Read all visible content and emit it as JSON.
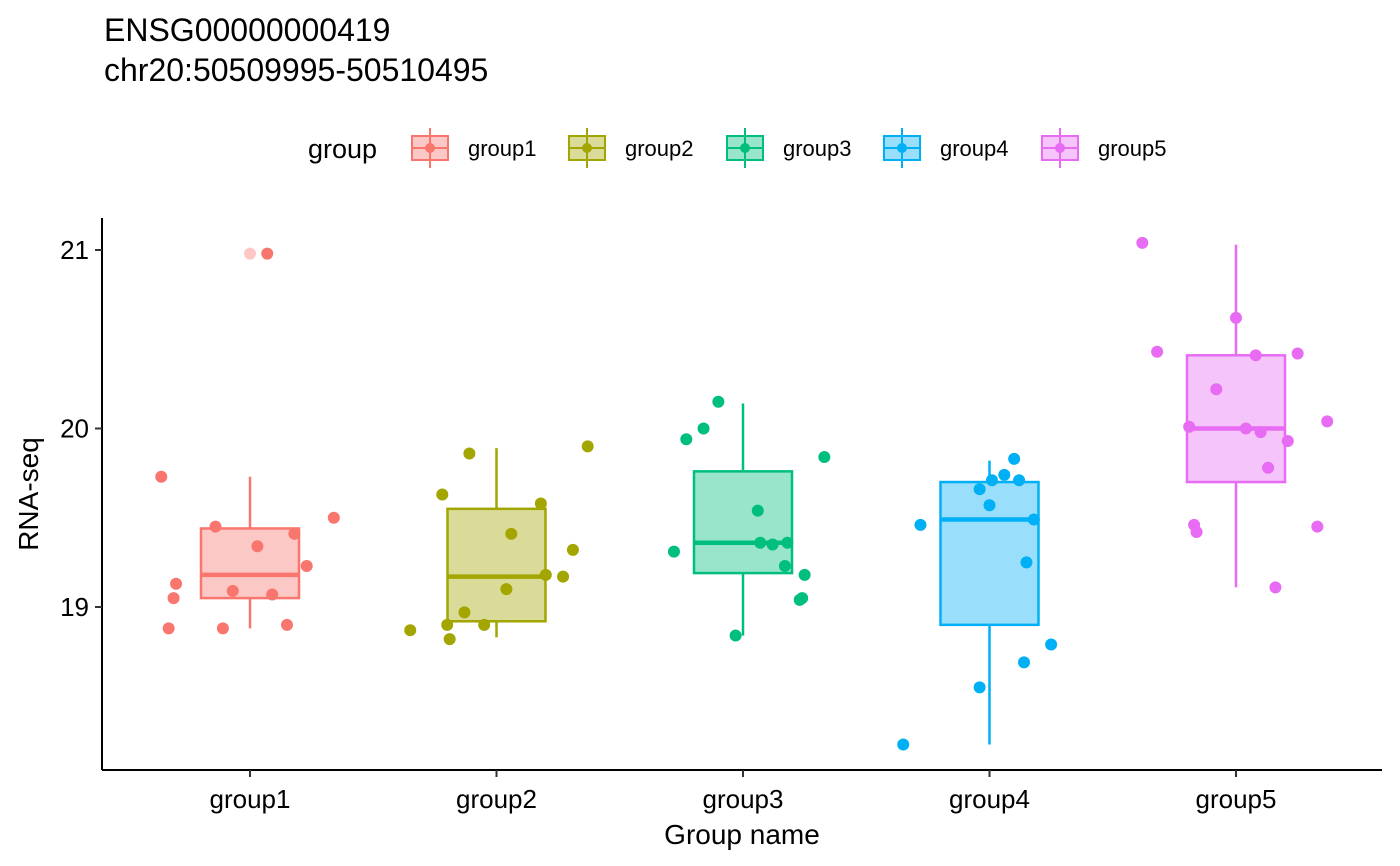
{
  "chart_data": {
    "type": "box",
    "title": "ENSG00000000419",
    "subtitle": "chr20:50509995-50510495",
    "xlabel": "Group name",
    "ylabel": "RNA-seq",
    "ylim": [
      18.1,
      21.2
    ],
    "yticks": [
      19,
      20,
      21
    ],
    "legend": {
      "title": "group",
      "position": "top"
    },
    "categories": [
      "group1",
      "group2",
      "group3",
      "group4",
      "group5"
    ],
    "series": [
      {
        "name": "group1",
        "color": "#F8766D",
        "box": {
          "min": 18.88,
          "q1": 19.05,
          "median": 19.18,
          "q3": 19.44,
          "max": 19.73
        },
        "outliers": [
          20.98
        ],
        "points": [
          {
            "dx": -0.36,
            "y": 19.73
          },
          {
            "dx": -0.3,
            "y": 19.13
          },
          {
            "dx": -0.31,
            "y": 19.05
          },
          {
            "dx": -0.33,
            "y": 18.88
          },
          {
            "dx": -0.14,
            "y": 19.45
          },
          {
            "dx": -0.07,
            "y": 19.09
          },
          {
            "dx": -0.11,
            "y": 18.88
          },
          {
            "dx": 0.03,
            "y": 19.34
          },
          {
            "dx": 0.09,
            "y": 19.07
          },
          {
            "dx": 0.15,
            "y": 18.9
          },
          {
            "dx": 0.18,
            "y": 19.41
          },
          {
            "dx": 0.23,
            "y": 19.23
          },
          {
            "dx": 0.34,
            "y": 19.5
          },
          {
            "dx": 0.07,
            "y": 20.98
          }
        ]
      },
      {
        "name": "group2",
        "color": "#A3A500",
        "box": {
          "min": 18.83,
          "q1": 18.92,
          "median": 19.17,
          "q3": 19.55,
          "max": 19.89
        },
        "outliers": [],
        "points": [
          {
            "dx": -0.35,
            "y": 18.87
          },
          {
            "dx": -0.22,
            "y": 19.63
          },
          {
            "dx": -0.2,
            "y": 18.9
          },
          {
            "dx": -0.19,
            "y": 18.82
          },
          {
            "dx": -0.13,
            "y": 18.97
          },
          {
            "dx": -0.11,
            "y": 19.86
          },
          {
            "dx": -0.05,
            "y": 18.9
          },
          {
            "dx": 0.04,
            "y": 19.1
          },
          {
            "dx": 0.06,
            "y": 19.41
          },
          {
            "dx": 0.18,
            "y": 19.58
          },
          {
            "dx": 0.2,
            "y": 19.18
          },
          {
            "dx": 0.27,
            "y": 19.17
          },
          {
            "dx": 0.31,
            "y": 19.32
          },
          {
            "dx": 0.37,
            "y": 19.9
          }
        ]
      },
      {
        "name": "group3",
        "color": "#00BF7D",
        "box": {
          "min": 18.84,
          "q1": 19.19,
          "median": 19.36,
          "q3": 19.76,
          "max": 20.14
        },
        "outliers": [],
        "points": [
          {
            "dx": -0.28,
            "y": 19.31
          },
          {
            "dx": -0.23,
            "y": 19.94
          },
          {
            "dx": -0.16,
            "y": 20.0
          },
          {
            "dx": -0.1,
            "y": 20.15
          },
          {
            "dx": -0.03,
            "y": 18.84
          },
          {
            "dx": 0.06,
            "y": 19.54
          },
          {
            "dx": 0.07,
            "y": 19.36
          },
          {
            "dx": 0.12,
            "y": 19.35
          },
          {
            "dx": 0.17,
            "y": 19.23
          },
          {
            "dx": 0.18,
            "y": 19.36
          },
          {
            "dx": 0.23,
            "y": 19.04
          },
          {
            "dx": 0.24,
            "y": 19.05
          },
          {
            "dx": 0.25,
            "y": 19.18
          },
          {
            "dx": 0.33,
            "y": 19.84
          }
        ]
      },
      {
        "name": "group4",
        "color": "#00B0F6",
        "box": {
          "min": 18.23,
          "q1": 18.9,
          "median": 19.49,
          "q3": 19.7,
          "max": 19.82
        },
        "outliers": [],
        "points": [
          {
            "dx": -0.35,
            "y": 18.23
          },
          {
            "dx": -0.28,
            "y": 19.46
          },
          {
            "dx": -0.04,
            "y": 18.55
          },
          {
            "dx": -0.04,
            "y": 19.66
          },
          {
            "dx": 0.0,
            "y": 19.57
          },
          {
            "dx": 0.01,
            "y": 19.71
          },
          {
            "dx": 0.06,
            "y": 19.74
          },
          {
            "dx": 0.1,
            "y": 19.83
          },
          {
            "dx": 0.12,
            "y": 19.71
          },
          {
            "dx": 0.14,
            "y": 18.69
          },
          {
            "dx": 0.15,
            "y": 19.25
          },
          {
            "dx": 0.18,
            "y": 19.49
          },
          {
            "dx": 0.25,
            "y": 18.79
          }
        ]
      },
      {
        "name": "group5",
        "color": "#E76BF3",
        "box": {
          "min": 19.11,
          "q1": 19.7,
          "median": 20.0,
          "q3": 20.41,
          "max": 21.03
        },
        "outliers": [],
        "points": [
          {
            "dx": -0.38,
            "y": 21.04
          },
          {
            "dx": -0.32,
            "y": 20.43
          },
          {
            "dx": -0.19,
            "y": 20.01
          },
          {
            "dx": -0.17,
            "y": 19.46
          },
          {
            "dx": -0.16,
            "y": 19.42
          },
          {
            "dx": -0.08,
            "y": 20.22
          },
          {
            "dx": 0.0,
            "y": 20.62
          },
          {
            "dx": 0.04,
            "y": 20.0
          },
          {
            "dx": 0.08,
            "y": 20.41
          },
          {
            "dx": 0.1,
            "y": 19.98
          },
          {
            "dx": 0.13,
            "y": 19.78
          },
          {
            "dx": 0.16,
            "y": 19.11
          },
          {
            "dx": 0.21,
            "y": 19.93
          },
          {
            "dx": 0.25,
            "y": 20.42
          },
          {
            "dx": 0.33,
            "y": 19.45
          },
          {
            "dx": 0.37,
            "y": 20.04
          }
        ]
      }
    ]
  }
}
